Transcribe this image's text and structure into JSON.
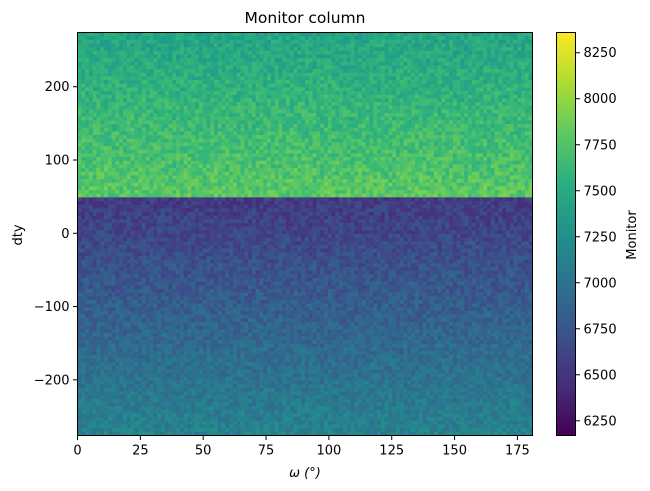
{
  "chart_data": {
    "type": "heatmap",
    "title": "Monitor column",
    "xlabel": "ω (°)",
    "ylabel": "dty",
    "xlim": [
      0,
      181
    ],
    "ylim": [
      -276,
      274
    ],
    "x_ticks": [
      0,
      25,
      50,
      75,
      100,
      125,
      150,
      175
    ],
    "y_ticks": [
      -200,
      -100,
      0,
      100,
      200
    ],
    "x_tick_labels": [
      "0",
      "25",
      "50",
      "75",
      "100",
      "125",
      "150",
      "175"
    ],
    "y_tick_labels": [
      "−200",
      "−100",
      "0",
      "100",
      "200"
    ],
    "grid": false,
    "colormap": "viridis",
    "colorbar": {
      "label": "Monitor",
      "range": [
        6170,
        8360
      ],
      "ticks": [
        6250,
        6500,
        6750,
        7000,
        7250,
        7500,
        7750,
        8000,
        8250
      ],
      "tick_labels": [
        "6250",
        "6500",
        "6750",
        "7000",
        "7250",
        "7500",
        "7750",
        "8000",
        "8250"
      ]
    },
    "regions": [
      {
        "dty_from": 48,
        "dty_to": 274,
        "monitor_at_boundary": 7800,
        "monitor_at_far_edge": 7450
      },
      {
        "dty_from": -276,
        "dty_to": 48,
        "monitor_at_boundary": 6550,
        "monitor_at_far_edge": 7150
      }
    ],
    "noise_amplitude": 140
  }
}
